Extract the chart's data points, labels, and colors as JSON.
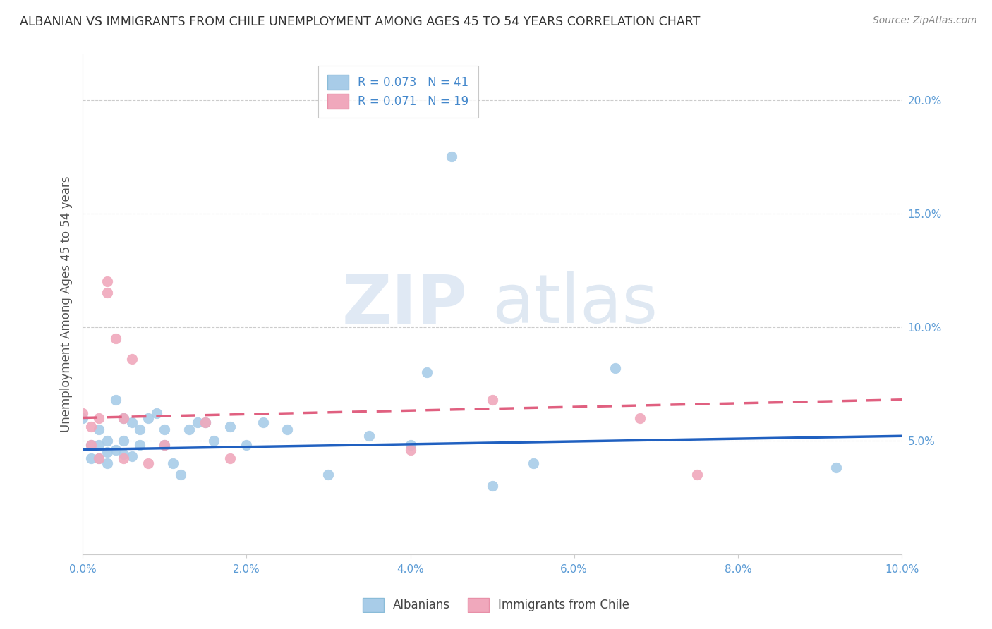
{
  "title": "ALBANIAN VS IMMIGRANTS FROM CHILE UNEMPLOYMENT AMONG AGES 45 TO 54 YEARS CORRELATION CHART",
  "source": "Source: ZipAtlas.com",
  "ylabel": "Unemployment Among Ages 45 to 54 years",
  "xlim": [
    0.0,
    0.1
  ],
  "ylim": [
    0.0,
    0.22
  ],
  "xticks": [
    0.0,
    0.02,
    0.04,
    0.06,
    0.08,
    0.1
  ],
  "xtick_labels": [
    "0.0%",
    "2.0%",
    "4.0%",
    "6.0%",
    "8.0%",
    "10.0%"
  ],
  "yticks_right": [
    0.05,
    0.1,
    0.15,
    0.2
  ],
  "ytick_labels_right": [
    "5.0%",
    "10.0%",
    "15.0%",
    "20.0%"
  ],
  "legend1_label": "R = 0.073   N = 41",
  "legend2_label": "R = 0.071   N = 19",
  "watermark_zip": "ZIP",
  "watermark_atlas": "atlas",
  "blue_color": "#A8CCE8",
  "pink_color": "#F0A8BC",
  "blue_line_color": "#2060C0",
  "pink_line_color": "#E06080",
  "albanian_x": [
    0.0,
    0.001,
    0.001,
    0.002,
    0.002,
    0.002,
    0.003,
    0.003,
    0.003,
    0.004,
    0.004,
    0.005,
    0.005,
    0.005,
    0.006,
    0.006,
    0.007,
    0.007,
    0.008,
    0.009,
    0.01,
    0.01,
    0.011,
    0.012,
    0.013,
    0.014,
    0.015,
    0.016,
    0.018,
    0.02,
    0.022,
    0.025,
    0.03,
    0.035,
    0.04,
    0.042,
    0.045,
    0.05,
    0.055,
    0.065,
    0.092
  ],
  "albanian_y": [
    0.06,
    0.048,
    0.042,
    0.055,
    0.048,
    0.042,
    0.05,
    0.045,
    0.04,
    0.068,
    0.046,
    0.06,
    0.05,
    0.044,
    0.058,
    0.043,
    0.055,
    0.048,
    0.06,
    0.062,
    0.055,
    0.048,
    0.04,
    0.035,
    0.055,
    0.058,
    0.058,
    0.05,
    0.056,
    0.048,
    0.058,
    0.055,
    0.035,
    0.052,
    0.048,
    0.08,
    0.175,
    0.03,
    0.04,
    0.082,
    0.038
  ],
  "chile_x": [
    0.0,
    0.001,
    0.001,
    0.002,
    0.002,
    0.003,
    0.003,
    0.004,
    0.005,
    0.005,
    0.006,
    0.008,
    0.01,
    0.015,
    0.018,
    0.04,
    0.05,
    0.068,
    0.075
  ],
  "chile_y": [
    0.062,
    0.056,
    0.048,
    0.06,
    0.042,
    0.12,
    0.115,
    0.095,
    0.06,
    0.042,
    0.086,
    0.04,
    0.048,
    0.058,
    0.042,
    0.046,
    0.068,
    0.06,
    0.035
  ],
  "blue_trend_x0": 0.0,
  "blue_trend_y0": 0.046,
  "blue_trend_x1": 0.1,
  "blue_trend_y1": 0.052,
  "pink_trend_x0": 0.0,
  "pink_trend_y0": 0.06,
  "pink_trend_x1": 0.1,
  "pink_trend_y1": 0.068
}
